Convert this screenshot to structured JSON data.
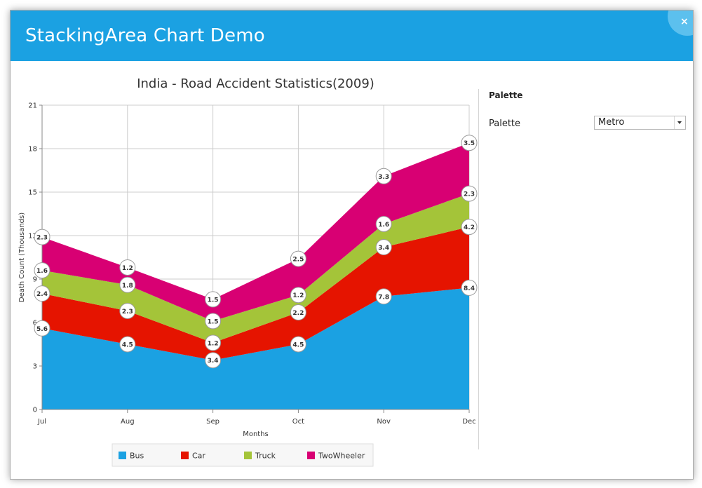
{
  "window": {
    "title": "StackingArea Chart Demo",
    "close_glyph": "×",
    "titlebar_color": "#1ba1e2"
  },
  "settings": {
    "heading": "Palette",
    "palette_label": "Palette",
    "palette_value": "Metro"
  },
  "chart_data": {
    "type": "area",
    "stacked": true,
    "title": "India - Road Accident Statistics(2009)",
    "xlabel": "Months",
    "ylabel": "Death Count (Thousands)",
    "categories": [
      "Jul",
      "Aug",
      "Sep",
      "Oct",
      "Nov",
      "Dec"
    ],
    "ylim": [
      0,
      21
    ],
    "yticks": [
      0,
      3,
      6,
      9,
      12,
      15,
      18,
      21
    ],
    "grid": true,
    "legend_position": "bottom",
    "series": [
      {
        "name": "Bus",
        "color": "#1ba1e2",
        "values": [
          5.6,
          4.5,
          3.4,
          4.5,
          7.8,
          8.4
        ]
      },
      {
        "name": "Car",
        "color": "#e51400",
        "values": [
          2.4,
          2.3,
          1.2,
          2.2,
          3.4,
          4.2
        ]
      },
      {
        "name": "Truck",
        "color": "#a4c439",
        "values": [
          1.6,
          1.8,
          1.5,
          1.2,
          1.6,
          2.3
        ]
      },
      {
        "name": "TwoWheeler",
        "color": "#d80073",
        "values": [
          2.3,
          1.2,
          1.5,
          2.5,
          3.3,
          3.5
        ]
      }
    ]
  }
}
